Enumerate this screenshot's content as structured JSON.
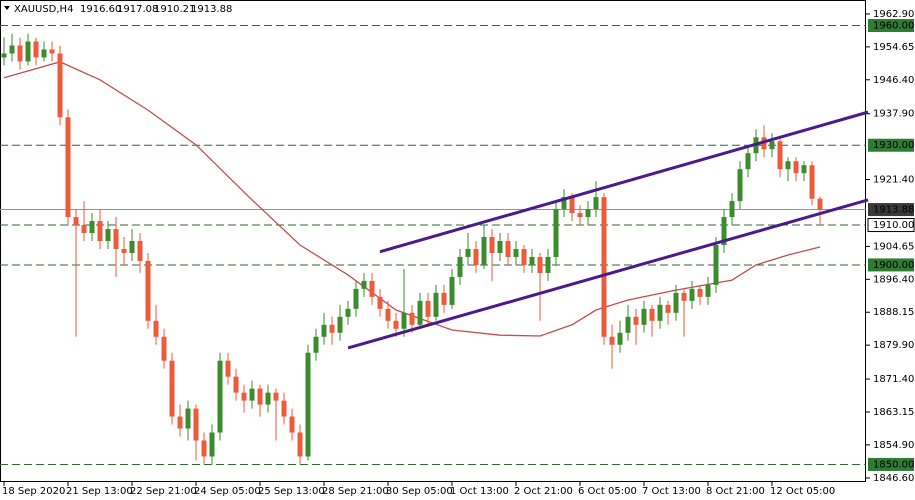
{
  "chart_data": {
    "type": "candlestick",
    "header": {
      "symbol": "XAUUSD,H4",
      "values": [
        "1916.60",
        "1917.08",
        "1910.21",
        "1913.88"
      ]
    },
    "bull_color": "#3a8c2c",
    "bear_color": "#ee5a3a",
    "ylim": [
      1845.6,
      1966.4
    ],
    "yticks": [
      {
        "value": 1962.9,
        "label": "1962.90"
      },
      1954.65,
      {
        "value": 1946.4,
        "label": "1946.40"
      },
      {
        "value": 1937.9,
        "label": "1937.90"
      },
      {
        "value": 1921.4,
        "label": "1921.40"
      },
      1904.65,
      {
        "value": 1896.4,
        "label": "1896.40"
      },
      1888.15,
      {
        "value": 1879.9,
        "label": "1879.90"
      },
      {
        "value": 1871.4,
        "label": "1871.40"
      },
      1863.15,
      {
        "value": 1854.9,
        "label": "1854.90"
      },
      {
        "value": 1846.6,
        "label": "1846.60"
      }
    ],
    "x_labels": [
      "18 Sep 2020",
      "21 Sep 13:00",
      "22 Sep 21:00",
      "24 Sep 05:00",
      "25 Sep 13:00",
      "28 Sep 21:00",
      "30 Sep 05:00",
      "1 Oct 13:00",
      "2 Oct 21:00",
      "6 Oct 05:00",
      "7 Oct 13:00",
      "8 Oct 21:00",
      "12 Oct 05:00"
    ],
    "levels": [
      {
        "value": 1960,
        "label": "1960.00",
        "color": "#2e7d32"
      },
      {
        "value": 1930,
        "label": "1930.00",
        "color": "#2e7d32"
      },
      {
        "value": 1910,
        "label": "1910.00",
        "color": "#ffffff"
      },
      {
        "value": 1900,
        "label": "1900.00",
        "color": "#2e7d32"
      },
      {
        "value": 1850,
        "label": "1850.00",
        "color": "#2e7d32"
      }
    ],
    "level_line_color": "#2f6a2f",
    "last_price": {
      "value": 1913.88,
      "label": "1913.88",
      "color": "#3a3a3a"
    },
    "ma": {
      "color": "#c0504d",
      "x": [
        0,
        7,
        12,
        18,
        24,
        31,
        37,
        43,
        49,
        56,
        62,
        67,
        71,
        74,
        78,
        84,
        91,
        94,
        98,
        102
      ],
      "values": [
        1946.9,
        1950.9,
        1946.4,
        1938.8,
        1930.1,
        1916.3,
        1905.0,
        1897.5,
        1888.7,
        1883.7,
        1882.4,
        1882.2,
        1885.0,
        1888.7,
        1891.2,
        1893.7,
        1896.2,
        1900.0,
        1902.5,
        1904.5
      ]
    },
    "trendlines": {
      "color": "#4b1a8c",
      "lines": [
        {
          "x": [
            47,
            108
          ],
          "values": [
            1903.3,
            1938.3
          ]
        },
        {
          "x": [
            43,
            108
          ],
          "values": [
            1879.2,
            1916.3
          ]
        }
      ]
    },
    "ohlc": [
      [
        1952,
        1957,
        1950,
        1953
      ],
      [
        1953,
        1958,
        1951,
        1955
      ],
      [
        1955,
        1957,
        1949,
        1951
      ],
      [
        1951,
        1958,
        1950,
        1956
      ],
      [
        1956,
        1957,
        1950,
        1952
      ],
      [
        1952,
        1956,
        1951,
        1954
      ],
      [
        1954,
        1956,
        1951,
        1953
      ],
      [
        1953,
        1955,
        1935,
        1937
      ],
      [
        1937,
        1939,
        1910,
        1912
      ],
      [
        1912,
        1914,
        1882,
        1910
      ],
      [
        1910,
        1916,
        1906,
        1908
      ],
      [
        1908,
        1913,
        1906,
        1911
      ],
      [
        1911,
        1914,
        1904,
        1906
      ],
      [
        1906,
        1911,
        1904,
        1909
      ],
      [
        1909,
        1912,
        1897,
        1904
      ],
      [
        1904,
        1907,
        1900,
        1903
      ],
      [
        1903,
        1909,
        1901,
        1906
      ],
      [
        1906,
        1908,
        1898,
        1901
      ],
      [
        1901,
        1903,
        1884,
        1886
      ],
      [
        1886,
        1890,
        1880,
        1882
      ],
      [
        1882,
        1884,
        1874,
        1876
      ],
      [
        1876,
        1878,
        1860,
        1862
      ],
      [
        1862,
        1865,
        1857,
        1859
      ],
      [
        1859,
        1866,
        1856,
        1864
      ],
      [
        1864,
        1865,
        1851,
        1856
      ],
      [
        1856,
        1858,
        1850,
        1852
      ],
      [
        1852,
        1860,
        1850,
        1858
      ],
      [
        1858,
        1878,
        1856,
        1876
      ],
      [
        1876,
        1878,
        1870,
        1872
      ],
      [
        1872,
        1874,
        1866,
        1868
      ],
      [
        1868,
        1870,
        1863,
        1866
      ],
      [
        1866,
        1871,
        1864,
        1869
      ],
      [
        1869,
        1870,
        1862,
        1865
      ],
      [
        1865,
        1870,
        1863,
        1868
      ],
      [
        1868,
        1869,
        1856,
        1866
      ],
      [
        1866,
        1868,
        1860,
        1862
      ],
      [
        1862,
        1864,
        1856,
        1858
      ],
      [
        1858,
        1860,
        1850,
        1852
      ],
      [
        1852,
        1880,
        1851,
        1878
      ],
      [
        1878,
        1884,
        1876,
        1882
      ],
      [
        1882,
        1888,
        1880,
        1885
      ],
      [
        1885,
        1887,
        1880,
        1883
      ],
      [
        1883,
        1890,
        1881,
        1887
      ],
      [
        1887,
        1891,
        1885,
        1889
      ],
      [
        1889,
        1896,
        1887,
        1894
      ],
      [
        1894,
        1898,
        1892,
        1896
      ],
      [
        1896,
        1898,
        1890,
        1892
      ],
      [
        1892,
        1894,
        1887,
        1889
      ],
      [
        1889,
        1891,
        1884,
        1886
      ],
      [
        1886,
        1888,
        1882,
        1884
      ],
      [
        1884,
        1899,
        1882,
        1888
      ],
      [
        1888,
        1890,
        1883,
        1885
      ],
      [
        1885,
        1893,
        1884,
        1891
      ],
      [
        1891,
        1893,
        1885,
        1887
      ],
      [
        1887,
        1895,
        1886,
        1893
      ],
      [
        1893,
        1895,
        1888,
        1890
      ],
      [
        1890,
        1899,
        1889,
        1897
      ],
      [
        1897,
        1904,
        1895,
        1902
      ],
      [
        1902,
        1908,
        1900,
        1904
      ],
      [
        1904,
        1906,
        1898,
        1900
      ],
      [
        1900,
        1910,
        1899,
        1907
      ],
      [
        1907,
        1909,
        1896,
        1903
      ],
      [
        1903,
        1908,
        1901,
        1906
      ],
      [
        1906,
        1908,
        1900,
        1902
      ],
      [
        1902,
        1906,
        1900,
        1904
      ],
      [
        1904,
        1905,
        1898,
        1900
      ],
      [
        1900,
        1904,
        1898,
        1902
      ],
      [
        1902,
        1903,
        1886,
        1898
      ],
      [
        1898,
        1904,
        1896,
        1902
      ],
      [
        1902,
        1916,
        1900,
        1914
      ],
      [
        1914,
        1919,
        1912,
        1917
      ],
      [
        1917,
        1918,
        1911,
        1913
      ],
      [
        1913,
        1915,
        1910,
        1912
      ],
      [
        1912,
        1916,
        1910,
        1914
      ],
      [
        1914,
        1921,
        1912,
        1917
      ],
      [
        1917,
        1918,
        1880,
        1882
      ],
      [
        1882,
        1885,
        1874,
        1880
      ],
      [
        1880,
        1886,
        1878,
        1883
      ],
      [
        1883,
        1890,
        1881,
        1887
      ],
      [
        1887,
        1889,
        1880,
        1885
      ],
      [
        1885,
        1891,
        1883,
        1889
      ],
      [
        1889,
        1890,
        1882,
        1886
      ],
      [
        1886,
        1892,
        1884,
        1890
      ],
      [
        1890,
        1891,
        1885,
        1888
      ],
      [
        1888,
        1895,
        1886,
        1893
      ],
      [
        1893,
        1894,
        1882,
        1891
      ],
      [
        1891,
        1896,
        1889,
        1894
      ],
      [
        1894,
        1895,
        1890,
        1892
      ],
      [
        1892,
        1897,
        1890,
        1895
      ],
      [
        1895,
        1907,
        1893,
        1905
      ],
      [
        1905,
        1914,
        1903,
        1912
      ],
      [
        1912,
        1918,
        1910,
        1916
      ],
      [
        1916,
        1926,
        1914,
        1924
      ],
      [
        1924,
        1930,
        1922,
        1928
      ],
      [
        1928,
        1934,
        1926,
        1932
      ],
      [
        1932,
        1935,
        1927,
        1929
      ],
      [
        1929,
        1933,
        1927,
        1931
      ],
      [
        1931,
        1932,
        1922,
        1924
      ],
      [
        1924,
        1927,
        1921,
        1926
      ],
      [
        1926,
        1927,
        1921,
        1923
      ],
      [
        1923,
        1926,
        1921,
        1925
      ],
      [
        1925,
        1926,
        1915,
        1916.6
      ],
      [
        1916.6,
        1917.08,
        1910.21,
        1913.88
      ]
    ]
  }
}
